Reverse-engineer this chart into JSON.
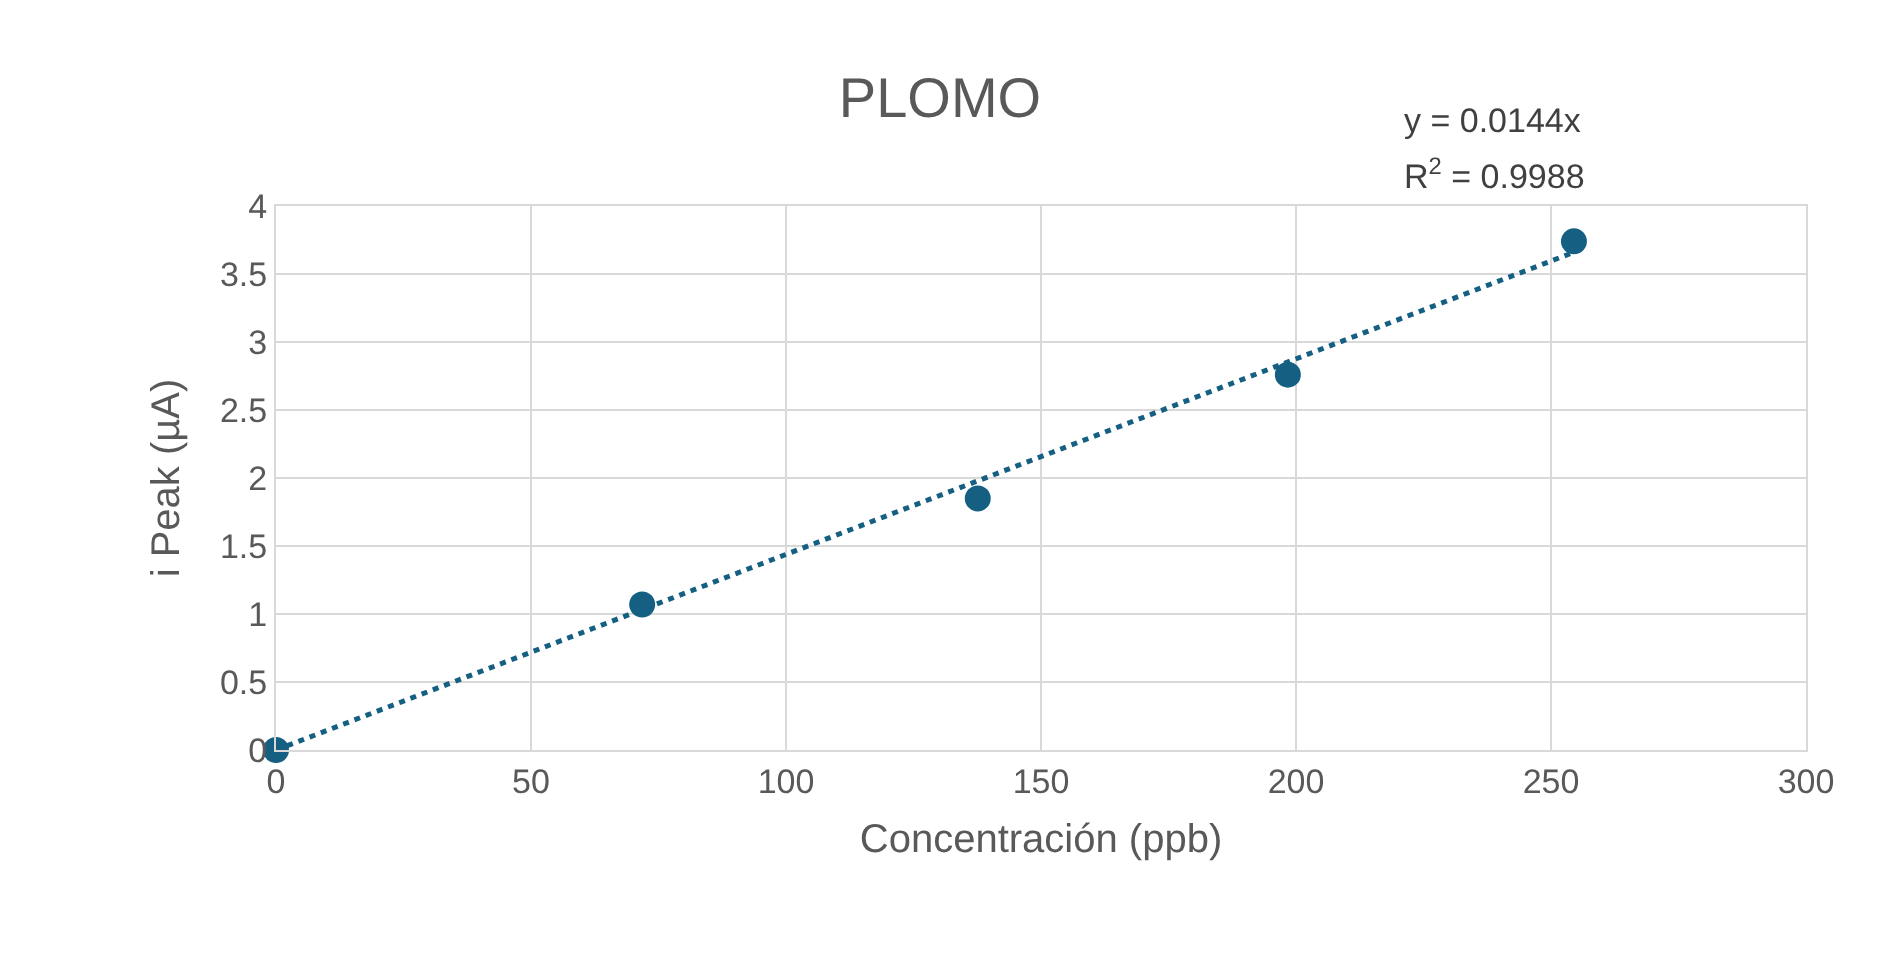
{
  "chart_data": {
    "type": "scatter",
    "title": "PLOMO",
    "xlabel": "Concentración (ppb)",
    "ylabel": "i Peak (µA)",
    "xlim": [
      0,
      300
    ],
    "xticks": [
      0,
      50,
      100,
      150,
      200,
      250,
      300
    ],
    "ylim": [
      0,
      4
    ],
    "yticks": [
      0,
      0.5,
      1,
      1.5,
      2,
      2.5,
      3,
      3.5,
      4
    ],
    "grid": true,
    "series": [
      {
        "color": "#156082",
        "marker": "circle",
        "x": [
          0,
          71.8,
          137.6,
          198.4,
          254.5
        ],
        "values": [
          0,
          1.07,
          1.85,
          2.76,
          3.74
        ]
      },
      {
        "type": "line",
        "color": "#156082",
        "line_style": "dotted",
        "marker": "none",
        "x": [
          0,
          254.5
        ],
        "values": [
          0,
          3.66
        ]
      }
    ],
    "annotations": [
      "y = 0.0144x",
      "R$^{2}$ = 0.9988"
    ]
  }
}
